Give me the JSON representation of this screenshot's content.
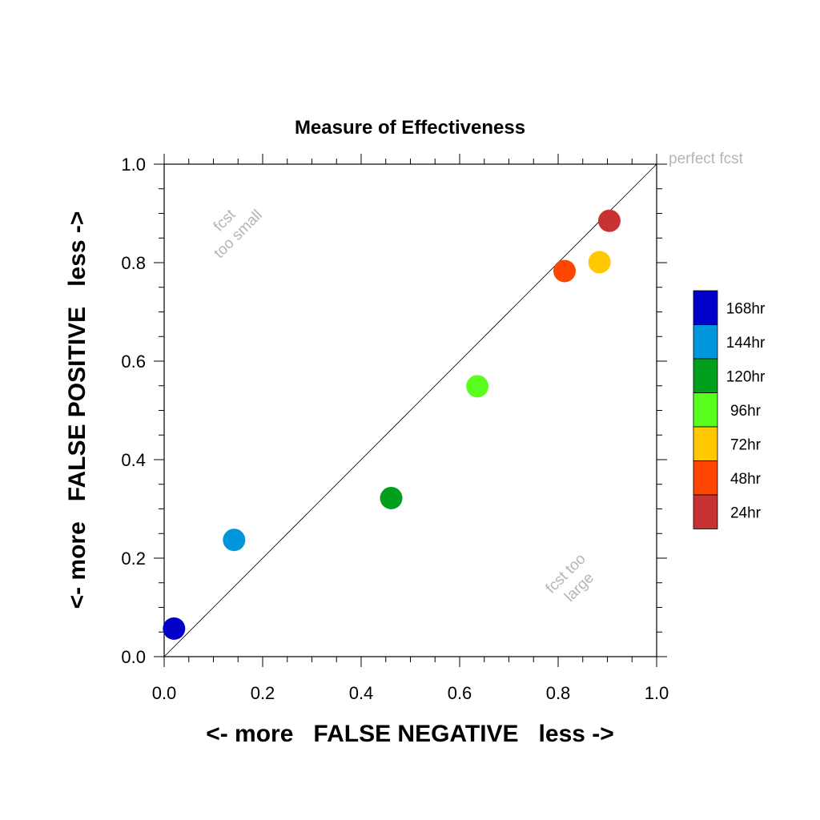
{
  "chart_data": {
    "type": "scatter",
    "title": "Measure of Effectiveness",
    "xlabel": "<- more   FALSE NEGATIVE   less ->",
    "ylabel": "<- more   FALSE POSITIVE   less ->",
    "xlim": [
      0.0,
      1.0
    ],
    "ylim": [
      0.0,
      1.0
    ],
    "x_ticks": [
      "0.0",
      "0.2",
      "0.4",
      "0.6",
      "0.8",
      "1.0"
    ],
    "y_ticks": [
      "0.0",
      "0.2",
      "0.4",
      "0.6",
      "0.8",
      "1.0"
    ],
    "grid": false,
    "reference_line": "diagonal y = x",
    "annotations": {
      "perfect": "perfect fcst",
      "small_line1": "fcst",
      "small_line2": "too small",
      "large_line1": "fcst too",
      "large_line2": "large"
    },
    "legend_position": "right",
    "series": [
      {
        "name": "168hr",
        "x": 0.02,
        "y": 0.057,
        "color": "#0000c8"
      },
      {
        "name": "144hr",
        "x": 0.142,
        "y": 0.237,
        "color": "#0096dc"
      },
      {
        "name": "120hr",
        "x": 0.461,
        "y": 0.322,
        "color": "#00a01e"
      },
      {
        "name": "96hr",
        "x": 0.636,
        "y": 0.549,
        "color": "#5aff1e"
      },
      {
        "name": "72hr",
        "x": 0.884,
        "y": 0.801,
        "color": "#ffc800"
      },
      {
        "name": "48hr",
        "x": 0.813,
        "y": 0.783,
        "color": "#ff4600"
      },
      {
        "name": "24hr",
        "x": 0.904,
        "y": 0.885,
        "color": "#c83232"
      }
    ]
  }
}
